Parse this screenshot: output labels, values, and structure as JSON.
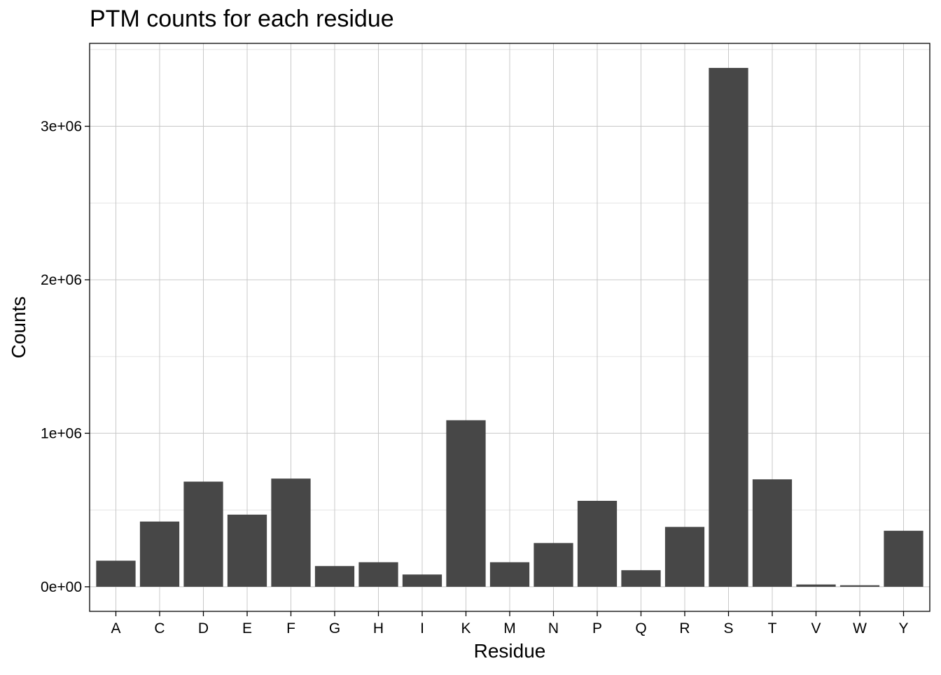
{
  "chart_data": {
    "type": "bar",
    "title": "PTM counts for each residue",
    "xlabel": "Residue",
    "ylabel": "Counts",
    "categories": [
      "A",
      "C",
      "D",
      "E",
      "F",
      "G",
      "H",
      "I",
      "K",
      "M",
      "N",
      "P",
      "Q",
      "R",
      "S",
      "T",
      "V",
      "W",
      "Y"
    ],
    "values": [
      170000,
      425000,
      685000,
      470000,
      705000,
      135000,
      160000,
      80000,
      1085000,
      160000,
      285000,
      560000,
      108000,
      390000,
      3380000,
      700000,
      15000,
      10000,
      365000
    ],
    "ylim": [
      -160000,
      3540000
    ],
    "yticks": [
      0,
      1000000,
      2000000,
      3000000
    ],
    "ytick_labels": [
      "0e+00",
      "1e+06",
      "2e+06",
      "3e+06"
    ],
    "grid": true,
    "colors": {
      "bar": "#474747",
      "grid_major": "#c8c8c8",
      "grid_minor": "#e3e3e3",
      "border": "#000000"
    }
  }
}
